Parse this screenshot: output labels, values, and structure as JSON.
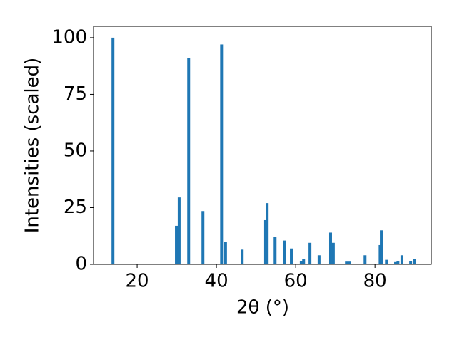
{
  "chart_data": {
    "type": "bar",
    "xlabel": "2θ (°)",
    "ylabel": "Intensities (scaled)",
    "x": [
      13.9,
      27.9,
      29.9,
      30.6,
      33.0,
      36.6,
      41.3,
      42.3,
      46.5,
      52.4,
      52.8,
      54.8,
      57.1,
      58.9,
      61.4,
      62.0,
      63.6,
      65.9,
      68.8,
      69.5,
      72.8,
      73.5,
      77.5,
      81.3,
      81.6,
      82.9,
      85.2,
      85.8,
      86.8,
      89.0,
      89.9
    ],
    "values": [
      100,
      0.3,
      17,
      29.5,
      91,
      23.5,
      97,
      10,
      6.5,
      19.5,
      27,
      12,
      10.5,
      7,
      1.5,
      2.5,
      9.5,
      4,
      14,
      9.5,
      1.2,
      1.2,
      4,
      8.5,
      15,
      2,
      1,
      1.5,
      4,
      1.5,
      2.5
    ],
    "color": "#1f77b4",
    "xlim": [
      9.0,
      94.2
    ],
    "ylim": [
      0,
      105
    ],
    "xticks": [
      20,
      40,
      60,
      80
    ],
    "yticks": [
      0,
      25,
      50,
      75,
      100
    ]
  }
}
